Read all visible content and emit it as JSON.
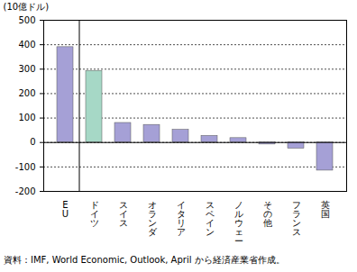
{
  "chart_data": {
    "type": "bar",
    "ylabel": "(10億ドル)",
    "caption": "資料：IMF, World Economic, Outlook, April から経済産業省作成。",
    "categories": [
      "EU",
      "ドイツ",
      "スイス",
      "オランダ",
      "イタリア",
      "スペイン",
      "ノルウェー",
      "その他",
      "フランス",
      "英国"
    ],
    "values": [
      390,
      293,
      80,
      72,
      52,
      27,
      18,
      -8,
      -25,
      -115
    ],
    "colors": [
      "#a5a0d6",
      "#a6d8c6",
      "#a5a0d6",
      "#a5a0d6",
      "#a5a0d6",
      "#a5a0d6",
      "#a5a0d6",
      "#a5a0d6",
      "#a5a0d6",
      "#a5a0d6"
    ],
    "ylim": [
      -200,
      500
    ],
    "yticks": [
      -200,
      -100,
      0,
      100,
      200,
      300,
      400,
      500
    ],
    "grid": true
  }
}
